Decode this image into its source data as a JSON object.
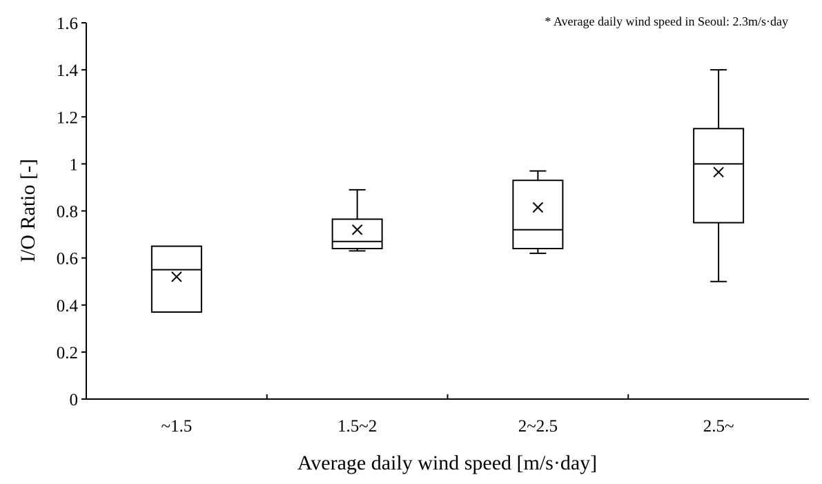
{
  "chart_data": {
    "type": "box",
    "annotation": "* Average daily wind speed in Seoul: 2.3m/s·day",
    "xlabel": "Average daily wind speed [m/s·day]",
    "ylabel": "I/O Ratio [-]",
    "ylim": [
      0,
      1.6
    ],
    "yticks": [
      "0",
      "0.2",
      "0.4",
      "0.6",
      "0.8",
      "1",
      "1.2",
      "1.4",
      "1.6"
    ],
    "grid": false,
    "categories": [
      "~1.5",
      "1.5~2",
      "2~2.5",
      "2.5~"
    ],
    "boxes": [
      {
        "category": "~1.5",
        "min": 0.37,
        "q1": 0.37,
        "median": 0.55,
        "q3": 0.65,
        "max": 0.65,
        "mean": 0.52
      },
      {
        "category": "1.5~2",
        "min": 0.63,
        "q1": 0.64,
        "median": 0.67,
        "q3": 0.765,
        "max": 0.89,
        "mean": 0.72
      },
      {
        "category": "2~2.5",
        "min": 0.62,
        "q1": 0.64,
        "median": 0.72,
        "q3": 0.93,
        "max": 0.97,
        "mean": 0.815
      },
      {
        "category": "2.5~",
        "min": 0.5,
        "q1": 0.75,
        "median": 1.0,
        "q3": 1.15,
        "max": 1.4,
        "mean": 0.965
      }
    ]
  }
}
